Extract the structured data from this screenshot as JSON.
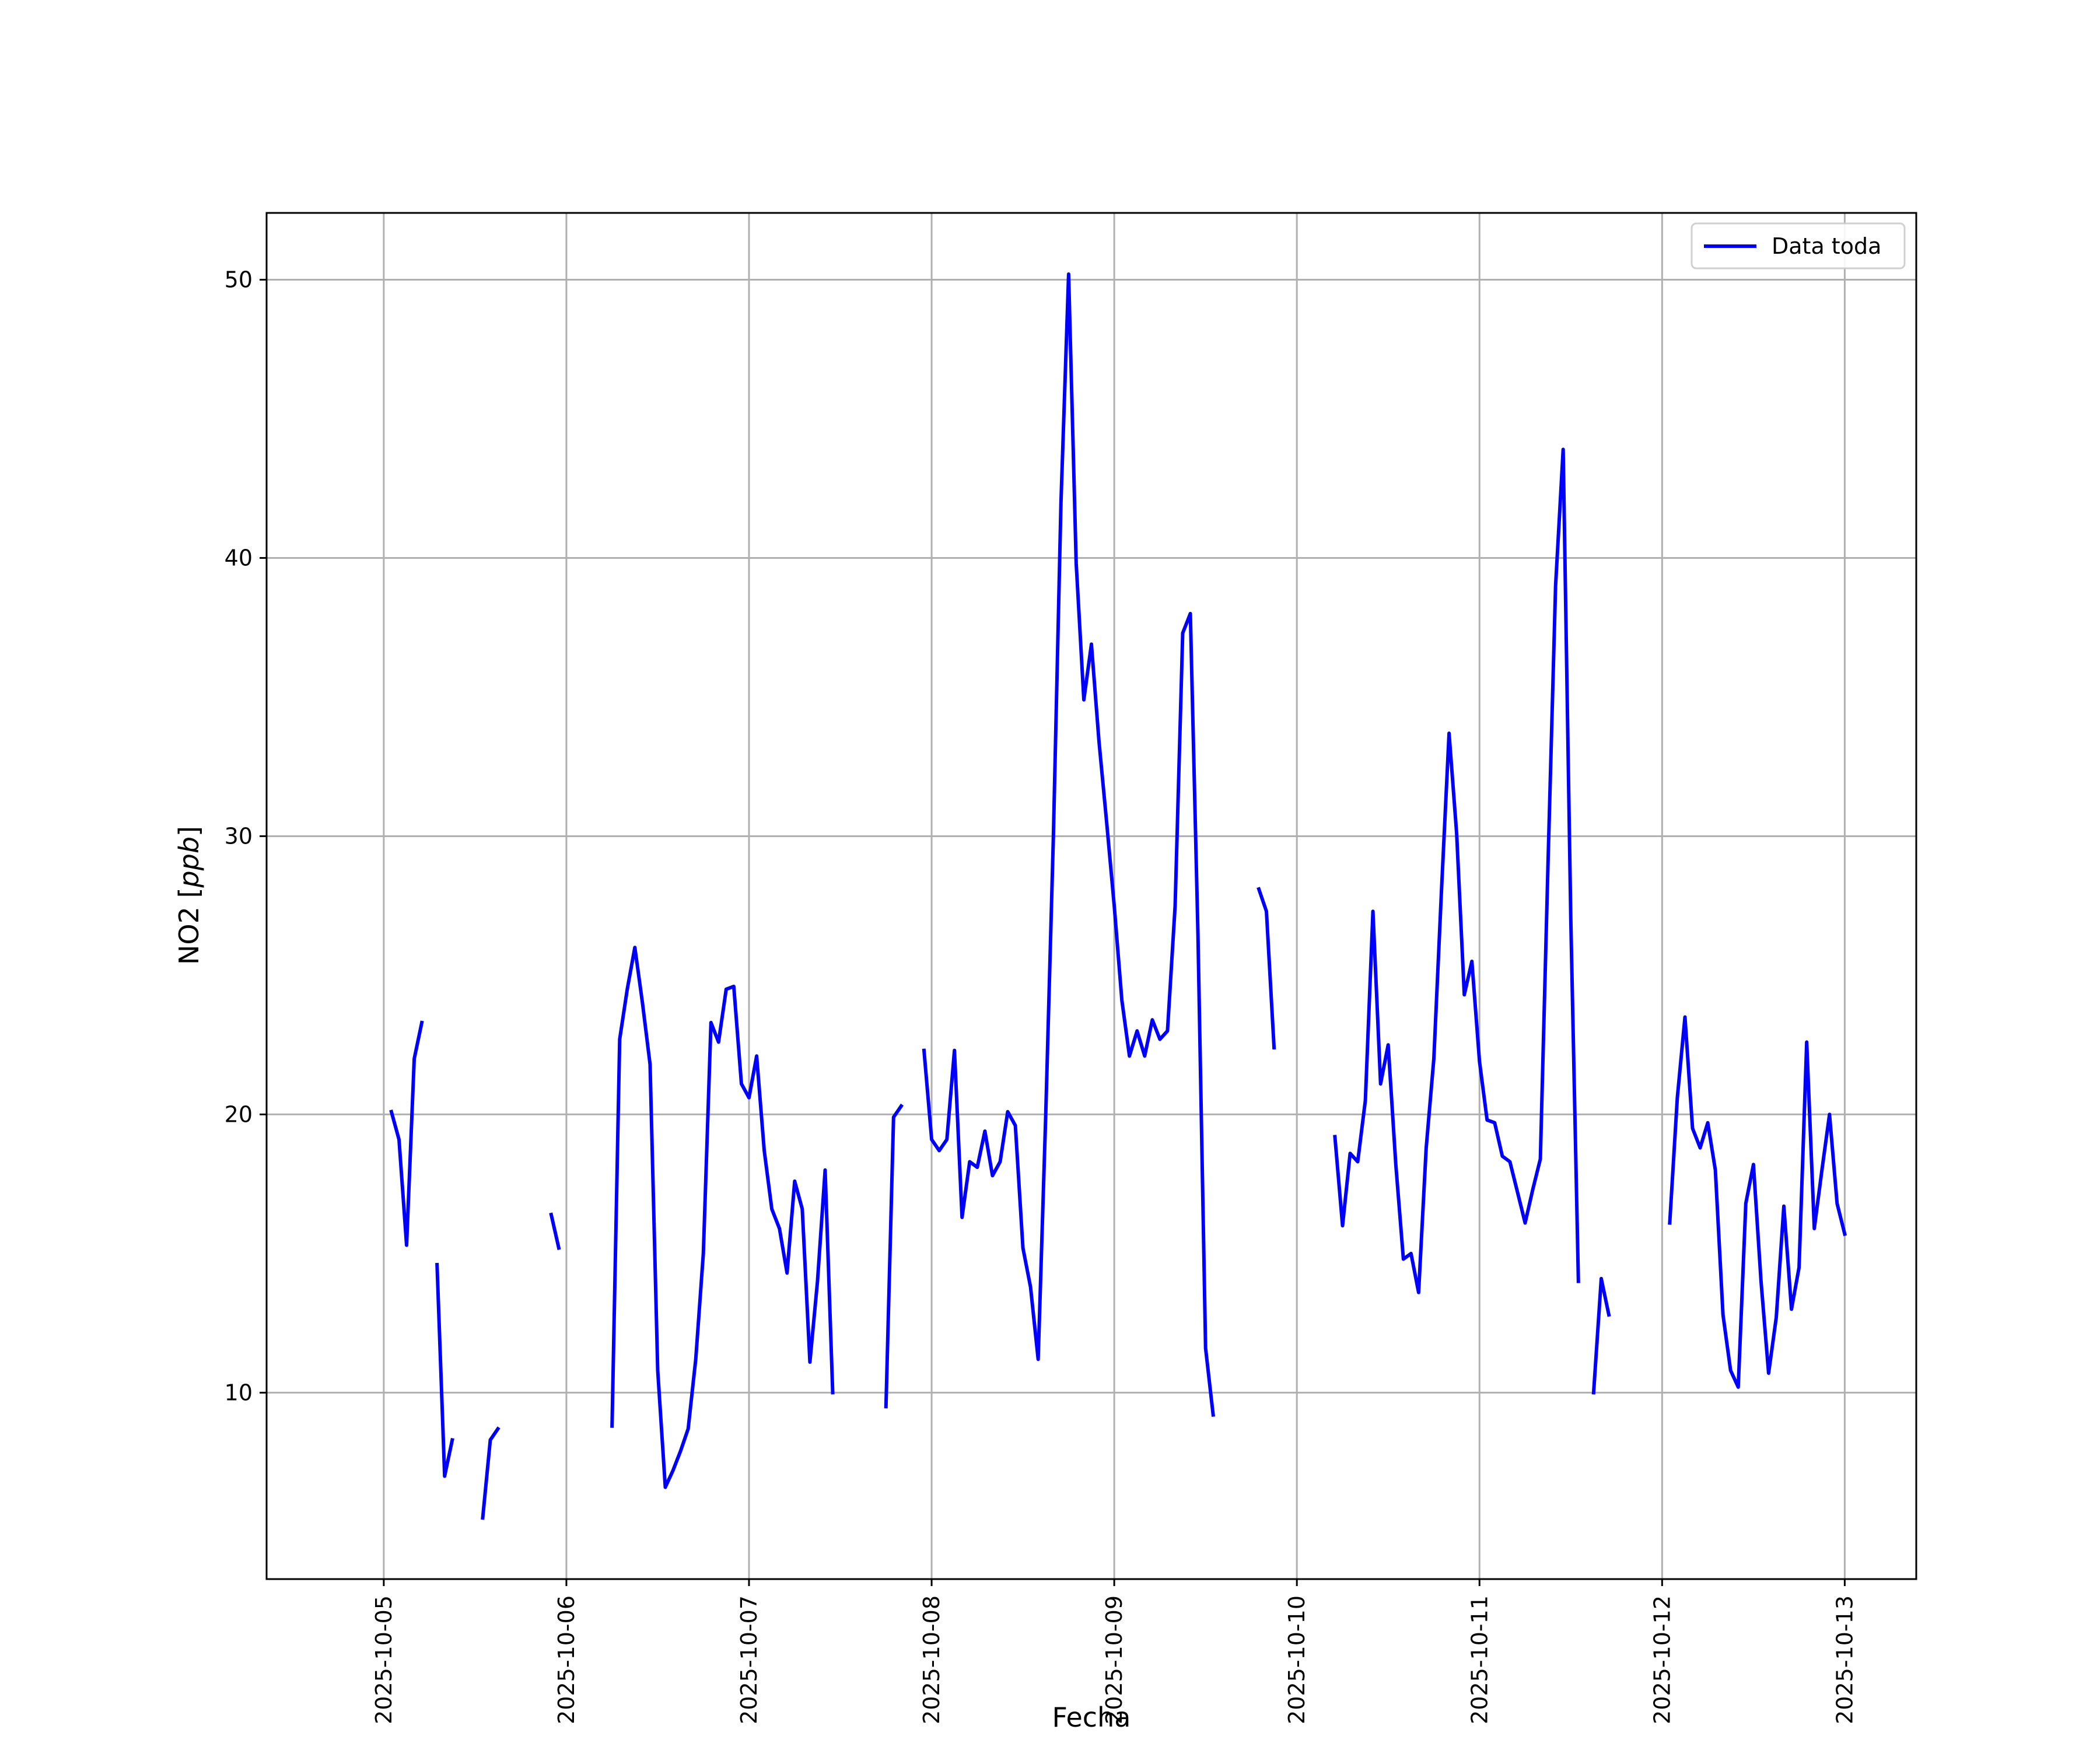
{
  "chart_data": {
    "type": "line",
    "title": "",
    "xlabel": "Fecha",
    "ylabel": "NO2 [ppb]",
    "ylabel_parts": {
      "main": "NO2 [",
      "unit": "ppb",
      "close": "]"
    },
    "x_ticks": [
      "2025-10-05",
      "2025-10-06",
      "2025-10-07",
      "2025-10-08",
      "2025-10-09",
      "2025-10-10",
      "2025-10-11",
      "2025-10-12",
      "2025-10-13"
    ],
    "y_ticks": [
      10,
      20,
      30,
      40,
      50
    ],
    "xlim": [
      "2025-10-04 08:36",
      "2025-10-13 09:24"
    ],
    "ylim": [
      3.3,
      52.4
    ],
    "grid": true,
    "legend_position": "top-right",
    "colors": {
      "series": "#0000ff",
      "grid": "#b0b0b0"
    },
    "series": [
      {
        "name": "Data toda",
        "segments": [
          [
            [
              "2025-10-05 01:00",
              20.1
            ],
            [
              "2025-10-05 02:00",
              19.1
            ],
            [
              "2025-10-05 03:00",
              15.3
            ],
            [
              "2025-10-05 04:00",
              22.0
            ],
            [
              "2025-10-05 05:00",
              23.3
            ]
          ],
          [
            [
              "2025-10-05 07:00",
              14.6
            ],
            [
              "2025-10-05 08:00",
              7.0
            ],
            [
              "2025-10-05 09:00",
              8.3
            ]
          ],
          [
            [
              "2025-10-05 13:00",
              5.5
            ],
            [
              "2025-10-05 14:00",
              8.3
            ],
            [
              "2025-10-05 15:00",
              8.7
            ]
          ],
          [
            [
              "2025-10-05 22:00",
              16.4
            ],
            [
              "2025-10-05 23:00",
              15.2
            ]
          ],
          [
            [
              "2025-10-06 06:00",
              8.8
            ],
            [
              "2025-10-06 07:00",
              22.7
            ],
            [
              "2025-10-06 08:00",
              24.5
            ],
            [
              "2025-10-06 09:00",
              26.0
            ],
            [
              "2025-10-06 10:00",
              24.0
            ],
            [
              "2025-10-06 11:00",
              21.8
            ],
            [
              "2025-10-06 12:00",
              10.8
            ],
            [
              "2025-10-06 13:00",
              6.6
            ],
            [
              "2025-10-06 14:00",
              7.2
            ],
            [
              "2025-10-06 15:00",
              7.9
            ],
            [
              "2025-10-06 16:00",
              8.7
            ],
            [
              "2025-10-06 17:00",
              11.2
            ],
            [
              "2025-10-06 18:00",
              15.0
            ],
            [
              "2025-10-06 19:00",
              23.3
            ],
            [
              "2025-10-06 20:00",
              22.6
            ],
            [
              "2025-10-06 21:00",
              24.5
            ],
            [
              "2025-10-06 22:00",
              24.6
            ],
            [
              "2025-10-06 23:00",
              21.1
            ],
            [
              "2025-10-07 00:00",
              20.6
            ],
            [
              "2025-10-07 01:00",
              22.1
            ],
            [
              "2025-10-07 02:00",
              18.7
            ],
            [
              "2025-10-07 03:00",
              16.6
            ],
            [
              "2025-10-07 04:00",
              15.9
            ],
            [
              "2025-10-07 05:00",
              14.3
            ],
            [
              "2025-10-07 06:00",
              17.6
            ],
            [
              "2025-10-07 07:00",
              16.6
            ],
            [
              "2025-10-07 08:00",
              11.1
            ],
            [
              "2025-10-07 09:00",
              14.0
            ],
            [
              "2025-10-07 10:00",
              18.0
            ],
            [
              "2025-10-07 11:00",
              10.0
            ]
          ],
          [
            [
              "2025-10-07 18:00",
              9.5
            ],
            [
              "2025-10-07 19:00",
              19.9
            ],
            [
              "2025-10-07 20:00",
              20.3
            ]
          ],
          [
            [
              "2025-10-07 23:00",
              22.3
            ],
            [
              "2025-10-08 00:00",
              19.1
            ],
            [
              "2025-10-08 01:00",
              18.7
            ],
            [
              "2025-10-08 02:00",
              19.1
            ],
            [
              "2025-10-08 03:00",
              22.3
            ],
            [
              "2025-10-08 04:00",
              16.3
            ],
            [
              "2025-10-08 05:00",
              18.3
            ],
            [
              "2025-10-08 06:00",
              18.1
            ],
            [
              "2025-10-08 07:00",
              19.4
            ],
            [
              "2025-10-08 08:00",
              17.8
            ],
            [
              "2025-10-08 09:00",
              18.3
            ],
            [
              "2025-10-08 10:00",
              20.1
            ],
            [
              "2025-10-08 11:00",
              19.6
            ],
            [
              "2025-10-08 12:00",
              15.2
            ],
            [
              "2025-10-08 13:00",
              13.8
            ],
            [
              "2025-10-08 14:00",
              11.2
            ],
            [
              "2025-10-08 15:00",
              20.0
            ],
            [
              "2025-10-08 16:00",
              30.0
            ],
            [
              "2025-10-08 17:00",
              42.0
            ],
            [
              "2025-10-08 18:00",
              50.2
            ],
            [
              "2025-10-08 19:00",
              39.8
            ],
            [
              "2025-10-08 20:00",
              34.9
            ],
            [
              "2025-10-08 21:00",
              36.9
            ],
            [
              "2025-10-08 22:00",
              33.4
            ],
            [
              "2025-10-08 23:00",
              30.5
            ],
            [
              "2025-10-09 00:00",
              27.5
            ],
            [
              "2025-10-09 01:00",
              24.1
            ],
            [
              "2025-10-09 02:00",
              22.1
            ],
            [
              "2025-10-09 03:00",
              23.0
            ],
            [
              "2025-10-09 04:00",
              22.1
            ],
            [
              "2025-10-09 05:00",
              23.4
            ],
            [
              "2025-10-09 06:00",
              22.7
            ],
            [
              "2025-10-09 07:00",
              23.0
            ],
            [
              "2025-10-09 08:00",
              27.5
            ],
            [
              "2025-10-09 09:00",
              37.3
            ],
            [
              "2025-10-09 10:00",
              38.0
            ],
            [
              "2025-10-09 11:00",
              26.5
            ],
            [
              "2025-10-09 12:00",
              11.6
            ],
            [
              "2025-10-09 13:00",
              9.2
            ]
          ],
          [
            [
              "2025-10-09 19:00",
              28.1
            ],
            [
              "2025-10-09 20:00",
              27.3
            ],
            [
              "2025-10-09 21:00",
              22.4
            ]
          ],
          [
            [
              "2025-10-10 05:00",
              19.2
            ],
            [
              "2025-10-10 06:00",
              16.0
            ],
            [
              "2025-10-10 07:00",
              18.6
            ],
            [
              "2025-10-10 08:00",
              18.3
            ],
            [
              "2025-10-10 09:00",
              20.5
            ],
            [
              "2025-10-10 10:00",
              27.3
            ],
            [
              "2025-10-10 11:00",
              21.1
            ],
            [
              "2025-10-10 12:00",
              22.5
            ],
            [
              "2025-10-10 13:00",
              18.2
            ],
            [
              "2025-10-10 14:00",
              14.8
            ],
            [
              "2025-10-10 15:00",
              15.0
            ],
            [
              "2025-10-10 16:00",
              13.6
            ],
            [
              "2025-10-10 17:00",
              18.8
            ],
            [
              "2025-10-10 18:00",
              22.0
            ],
            [
              "2025-10-10 19:00",
              28.0
            ],
            [
              "2025-10-10 20:00",
              33.7
            ],
            [
              "2025-10-10 21:00",
              30.1
            ],
            [
              "2025-10-10 22:00",
              24.3
            ],
            [
              "2025-10-10 23:00",
              25.5
            ],
            [
              "2025-10-11 00:00",
              21.9
            ],
            [
              "2025-10-11 01:00",
              19.8
            ],
            [
              "2025-10-11 02:00",
              19.7
            ],
            [
              "2025-10-11 03:00",
              18.5
            ],
            [
              "2025-10-11 04:00",
              18.3
            ],
            [
              "2025-10-11 05:00",
              17.2
            ],
            [
              "2025-10-11 06:00",
              16.1
            ],
            [
              "2025-10-11 07:00",
              17.3
            ],
            [
              "2025-10-11 08:00",
              18.4
            ],
            [
              "2025-10-11 09:00",
              29.0
            ],
            [
              "2025-10-11 10:00",
              39.0
            ],
            [
              "2025-10-11 11:00",
              43.9
            ],
            [
              "2025-10-11 12:00",
              27.0
            ],
            [
              "2025-10-11 13:00",
              14.0
            ]
          ],
          [
            [
              "2025-10-11 15:00",
              10.0
            ],
            [
              "2025-10-11 16:00",
              14.1
            ],
            [
              "2025-10-11 17:00",
              12.8
            ]
          ],
          [
            [
              "2025-10-12 01:00",
              16.1
            ],
            [
              "2025-10-12 02:00",
              20.6
            ],
            [
              "2025-10-12 03:00",
              23.5
            ],
            [
              "2025-10-12 04:00",
              19.5
            ],
            [
              "2025-10-12 05:00",
              18.8
            ],
            [
              "2025-10-12 06:00",
              19.7
            ],
            [
              "2025-10-12 07:00",
              18.0
            ],
            [
              "2025-10-12 08:00",
              12.8
            ],
            [
              "2025-10-12 09:00",
              10.8
            ],
            [
              "2025-10-12 10:00",
              10.2
            ],
            [
              "2025-10-12 11:00",
              16.8
            ],
            [
              "2025-10-12 12:00",
              18.2
            ],
            [
              "2025-10-12 13:00",
              14.0
            ],
            [
              "2025-10-12 14:00",
              10.7
            ],
            [
              "2025-10-12 15:00",
              12.7
            ],
            [
              "2025-10-12 16:00",
              16.7
            ],
            [
              "2025-10-12 17:00",
              13.0
            ],
            [
              "2025-10-12 18:00",
              14.5
            ],
            [
              "2025-10-12 19:00",
              22.6
            ],
            [
              "2025-10-12 20:00",
              15.9
            ],
            [
              "2025-10-12 21:00",
              18.0
            ],
            [
              "2025-10-12 22:00",
              20.0
            ],
            [
              "2025-10-12 23:00",
              16.8
            ],
            [
              "2025-10-13 00:00",
              15.7
            ]
          ]
        ]
      }
    ]
  }
}
